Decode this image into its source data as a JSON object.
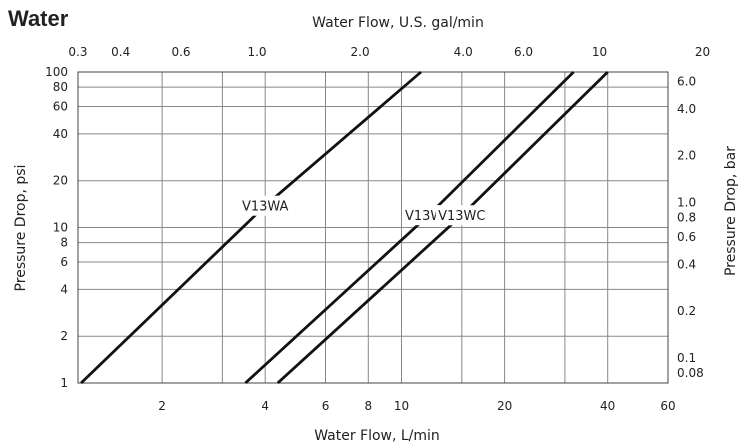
{
  "chart_data": {
    "type": "line",
    "title": "Water",
    "xlabel": "Water Flow, L/min",
    "xlabel_top": "Water Flow, U.S. gal/min",
    "ylabel": "Pressure Drop, psi",
    "ylabel_right": "Pressure Drop, bar",
    "x_scale": "log",
    "y_scale": "log",
    "xlim": [
      1.136,
      60
    ],
    "ylim": [
      1,
      100
    ],
    "grid": true,
    "x_ticks": [
      {
        "value": 2,
        "label": "2"
      },
      {
        "value": 4,
        "label": "4"
      },
      {
        "value": 6,
        "label": "6"
      },
      {
        "value": 8,
        "label": "8"
      },
      {
        "value": 10,
        "label": "10"
      },
      {
        "value": 20,
        "label": "20"
      },
      {
        "value": 40,
        "label": "40"
      },
      {
        "value": 60,
        "label": "60"
      }
    ],
    "x_top_ticks": [
      {
        "value": 0.3,
        "label": "0.3"
      },
      {
        "value": 0.4,
        "label": "0.4"
      },
      {
        "value": 0.6,
        "label": "0.6"
      },
      {
        "value": 1.0,
        "label": "1.0"
      },
      {
        "value": 2.0,
        "label": "2.0"
      },
      {
        "value": 4.0,
        "label": "4.0"
      },
      {
        "value": 6.0,
        "label": "6.0"
      },
      {
        "value": 10,
        "label": "10"
      },
      {
        "value": 20,
        "label": "20"
      }
    ],
    "y_ticks": [
      {
        "value": 1,
        "label": "1"
      },
      {
        "value": 2,
        "label": "2"
      },
      {
        "value": 4,
        "label": "4"
      },
      {
        "value": 6,
        "label": "6"
      },
      {
        "value": 8,
        "label": "8"
      },
      {
        "value": 10,
        "label": "10"
      },
      {
        "value": 20,
        "label": "20"
      },
      {
        "value": 40,
        "label": "40"
      },
      {
        "value": 60,
        "label": "60"
      },
      {
        "value": 80,
        "label": "80"
      },
      {
        "value": 100,
        "label": "100"
      }
    ],
    "y_right_ticks": [
      {
        "value": 0.08,
        "label": "0.08"
      },
      {
        "value": 0.1,
        "label": "0.1"
      },
      {
        "value": 0.2,
        "label": "0.2"
      },
      {
        "value": 0.4,
        "label": "0.4"
      },
      {
        "value": 0.6,
        "label": "0.6"
      },
      {
        "value": 0.8,
        "label": "0.8"
      },
      {
        "value": 1.0,
        "label": "1.0"
      },
      {
        "value": 2.0,
        "label": "2.0"
      },
      {
        "value": 4.0,
        "label": "4.0"
      },
      {
        "value": 6.0,
        "label": "6.0"
      }
    ],
    "x_grid": [
      2,
      3,
      4,
      6,
      8,
      10,
      15,
      20,
      30,
      40
    ],
    "y_grid": [
      2,
      4,
      6,
      8,
      10,
      20,
      40,
      60,
      80
    ],
    "series": [
      {
        "name": "V13WA",
        "points": [
          [
            1.16,
            1
          ],
          [
            4.0,
            13.8
          ],
          [
            11.4,
            100
          ]
        ]
      },
      {
        "name": "V13WB",
        "points": [
          [
            3.5,
            1
          ],
          [
            12.0,
            12.0
          ],
          [
            31.8,
            100
          ]
        ]
      },
      {
        "name": "V13WC",
        "points": [
          [
            4.35,
            1
          ],
          [
            15.0,
            12.0
          ],
          [
            40.0,
            100
          ]
        ]
      }
    ]
  }
}
